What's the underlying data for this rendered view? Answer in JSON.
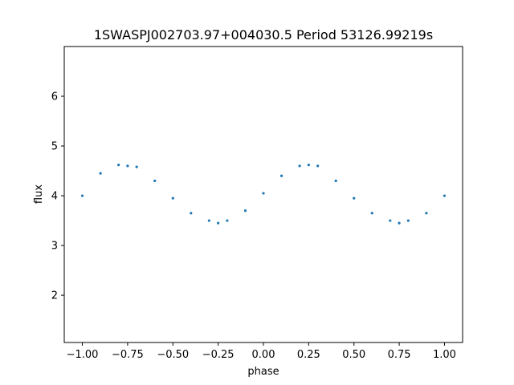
{
  "chart_data": {
    "type": "scatter",
    "title": "1SWASPJ002703.97+004030.5 Period 53126.99219s",
    "xlabel": "phase",
    "ylabel": "flux",
    "xlim": [
      -1.1,
      1.1
    ],
    "ylim": [
      1.05,
      7.0
    ],
    "x_ticks": [
      -1.0,
      -0.75,
      -0.5,
      -0.25,
      0.0,
      0.25,
      0.5,
      0.75,
      1.0
    ],
    "x_tick_labels": [
      "−1.00",
      "−0.75",
      "−0.50",
      "−0.25",
      "0.00",
      "0.25",
      "0.50",
      "0.75",
      "1.00"
    ],
    "y_ticks": [
      2,
      3,
      4,
      5,
      6
    ],
    "y_tick_labels": [
      "2",
      "3",
      "4",
      "5",
      "6"
    ],
    "grid": false,
    "marker_color": "#1f77b4",
    "series": [
      {
        "x": [
          -1.0,
          -0.9,
          -0.8,
          -0.75,
          -0.7,
          -0.6,
          -0.5,
          -0.4,
          -0.3,
          -0.25,
          -0.2,
          -0.1,
          0.0,
          0.1,
          0.2,
          0.25,
          0.3,
          0.4,
          0.5,
          0.6,
          0.7,
          0.75,
          0.8,
          0.9,
          1.0
        ],
        "y": [
          4.0,
          4.45,
          4.62,
          4.6,
          4.58,
          4.3,
          3.95,
          3.65,
          3.5,
          3.45,
          3.5,
          3.7,
          4.05,
          4.4,
          4.6,
          4.62,
          4.6,
          4.3,
          3.95,
          3.65,
          3.5,
          3.45,
          3.5,
          3.65,
          4.0
        ]
      }
    ]
  }
}
